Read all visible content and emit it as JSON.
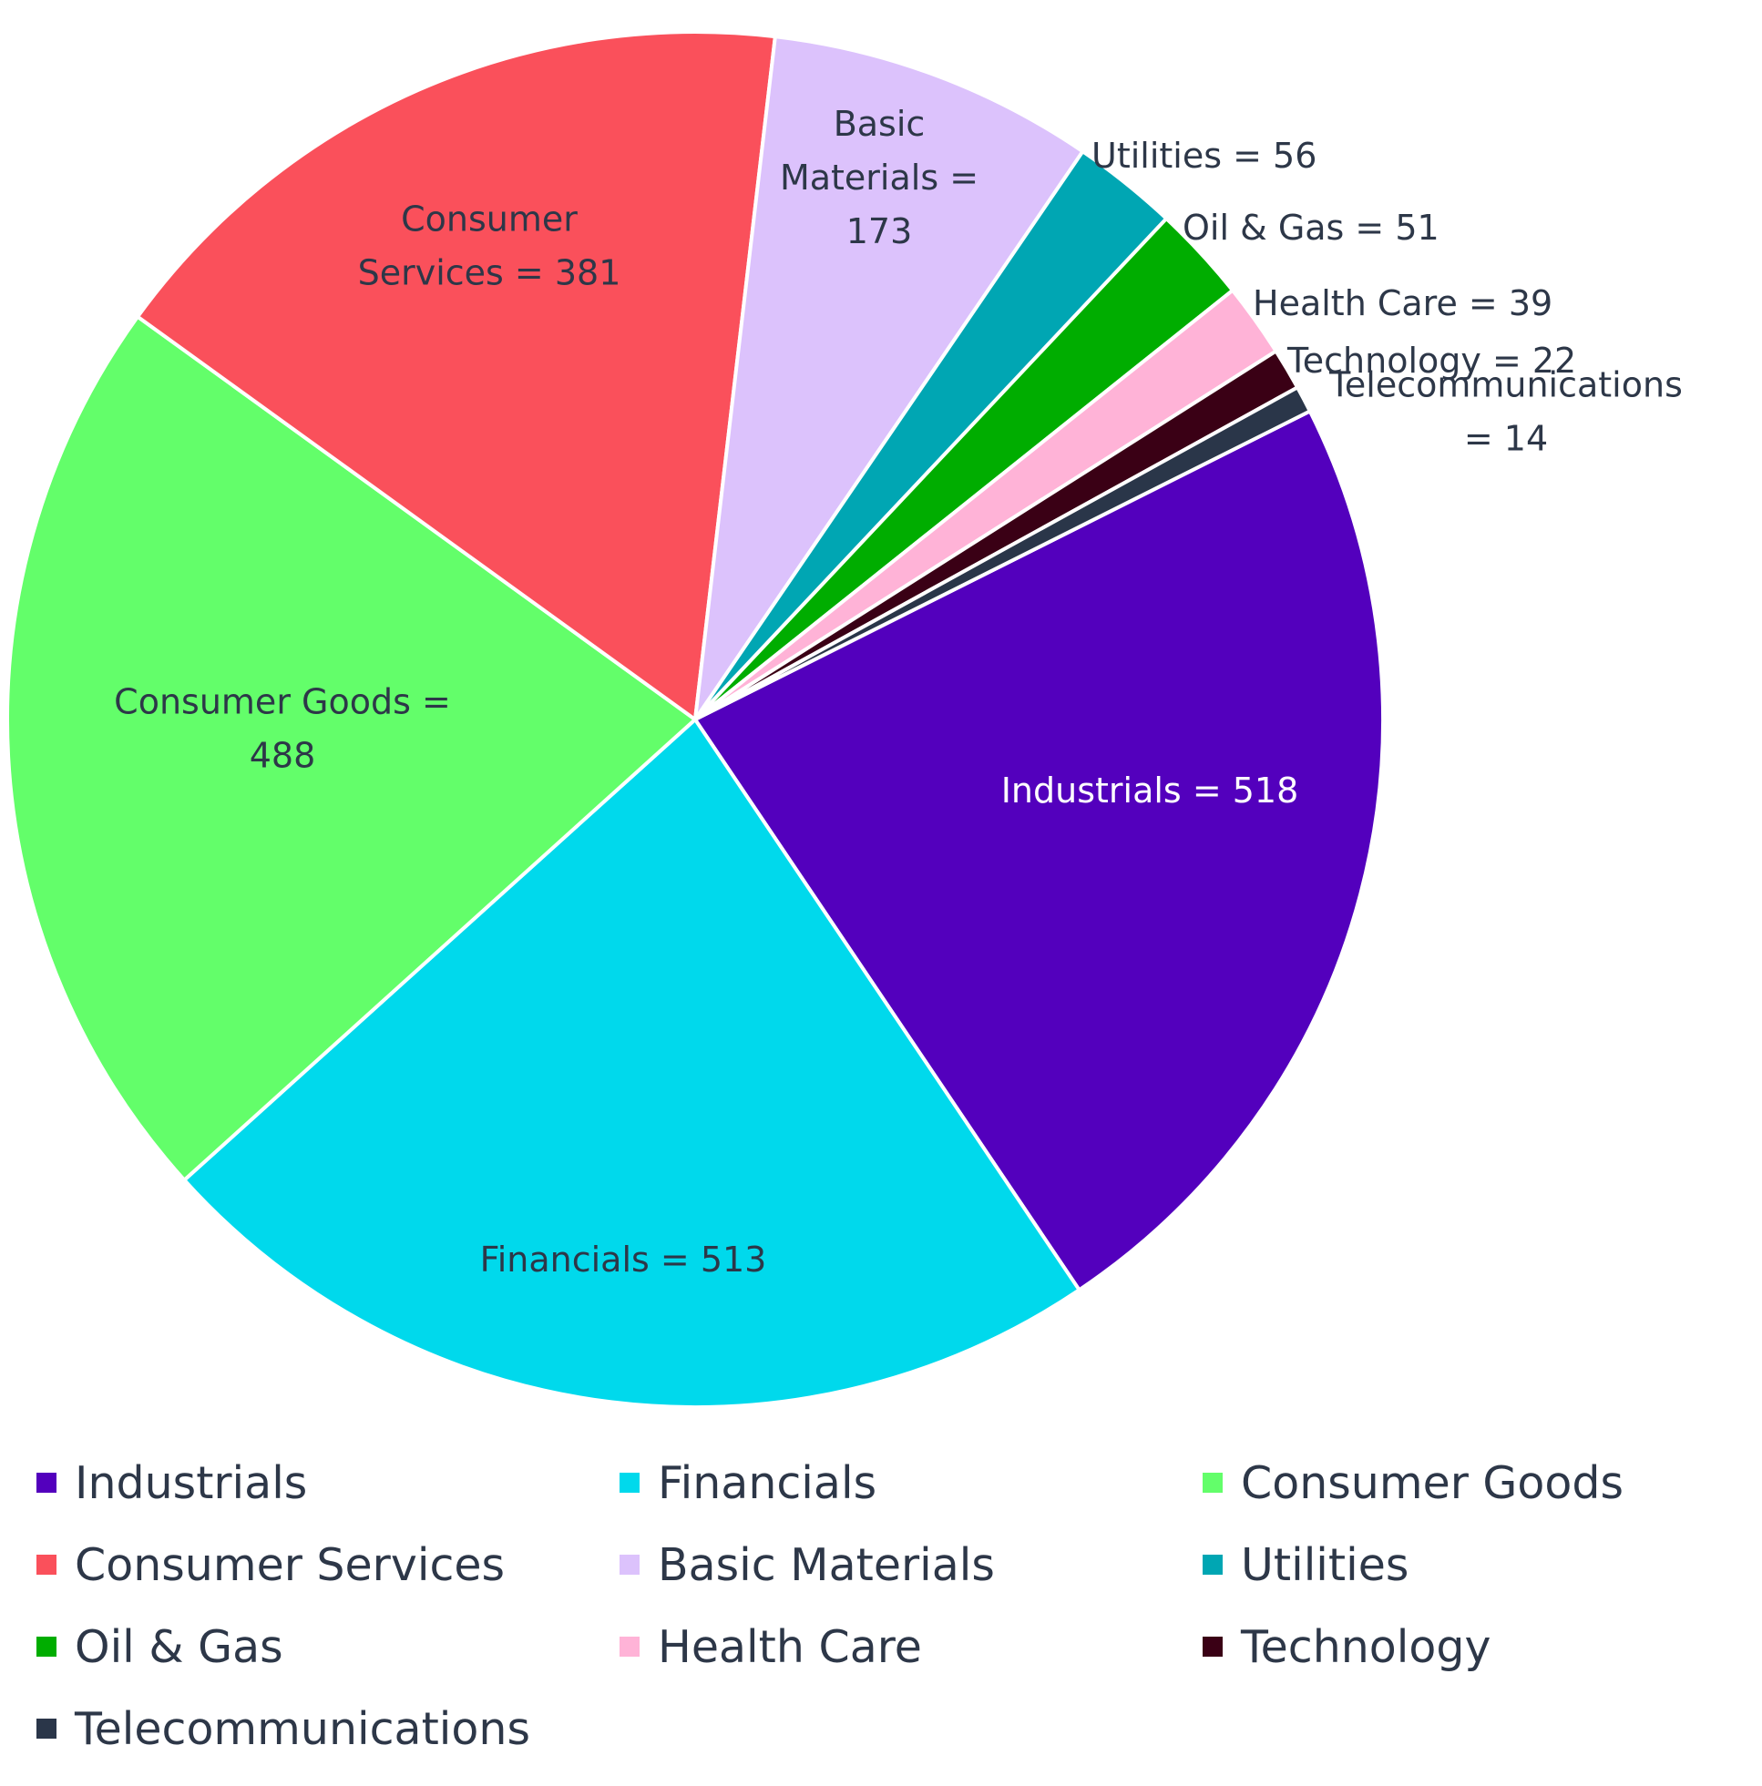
{
  "chart_data": {
    "type": "pie",
    "title": "",
    "legend_position": "bottom",
    "slices": [
      {
        "name": "Industrials",
        "value": 518,
        "color": "#5300bd",
        "label_lines": [
          "Industrials = 518"
        ],
        "label_color": "#ffffff"
      },
      {
        "name": "Financials",
        "value": 513,
        "color": "#00d9ec",
        "label_lines": [
          "Financials = 513"
        ],
        "label_color": "#2d3748"
      },
      {
        "name": "Consumer Goods",
        "value": 488,
        "color": "#63fe6a",
        "label_lines": [
          "Consumer Goods =",
          "488"
        ],
        "label_color": "#2d3748"
      },
      {
        "name": "Consumer Services",
        "value": 381,
        "color": "#fa505b",
        "label_lines": [
          "Consumer",
          "Services = 381"
        ],
        "label_color": "#2d3748"
      },
      {
        "name": "Basic Materials",
        "value": 173,
        "color": "#dcc2fc",
        "label_lines": [
          "Basic",
          "Materials =",
          "173"
        ],
        "label_color": "#2d3748"
      },
      {
        "name": "Utilities",
        "value": 56,
        "color": "#00a6b3",
        "label_lines": [
          "Utilities = 56"
        ],
        "label_color": "#2d3748"
      },
      {
        "name": "Oil & Gas",
        "value": 51,
        "color": "#00ad00",
        "label_lines": [
          "Oil & Gas = 51"
        ],
        "label_color": "#2d3748"
      },
      {
        "name": "Health Care",
        "value": 39,
        "color": "#ffb3d7",
        "label_lines": [
          "Health Care = 39"
        ],
        "label_color": "#2d3748"
      },
      {
        "name": "Technology",
        "value": 22,
        "color": "#3a0015",
        "label_lines": [
          "Technology = 22"
        ],
        "label_color": "#2d3748"
      },
      {
        "name": "Telecommunications",
        "value": 14,
        "color": "#2a3649",
        "label_lines": [
          "Telecommunications",
          "= 14"
        ],
        "label_color": "#2d3748"
      }
    ]
  }
}
